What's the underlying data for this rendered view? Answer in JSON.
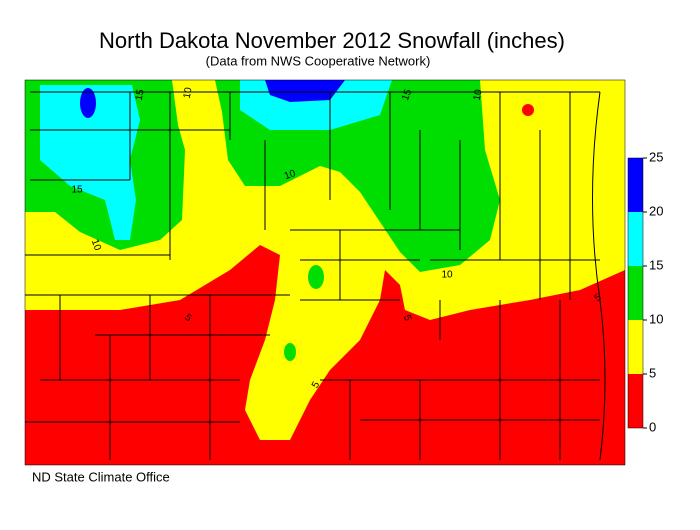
{
  "title": "North Dakota November 2012 Snowfall (inches)",
  "subtitle": "(Data from NWS Cooperative Network)",
  "credit": "ND State Climate Office",
  "legend": {
    "ticks": [
      0,
      5,
      10,
      15,
      20,
      25
    ],
    "colors": [
      "#ff0000",
      "#ffff00",
      "#00dd00",
      "#00ffff",
      "#0000ff"
    ]
  },
  "contour_labels": [
    15,
    10,
    15,
    10,
    10,
    15,
    10,
    10,
    5,
    5,
    5,
    5
  ]
}
